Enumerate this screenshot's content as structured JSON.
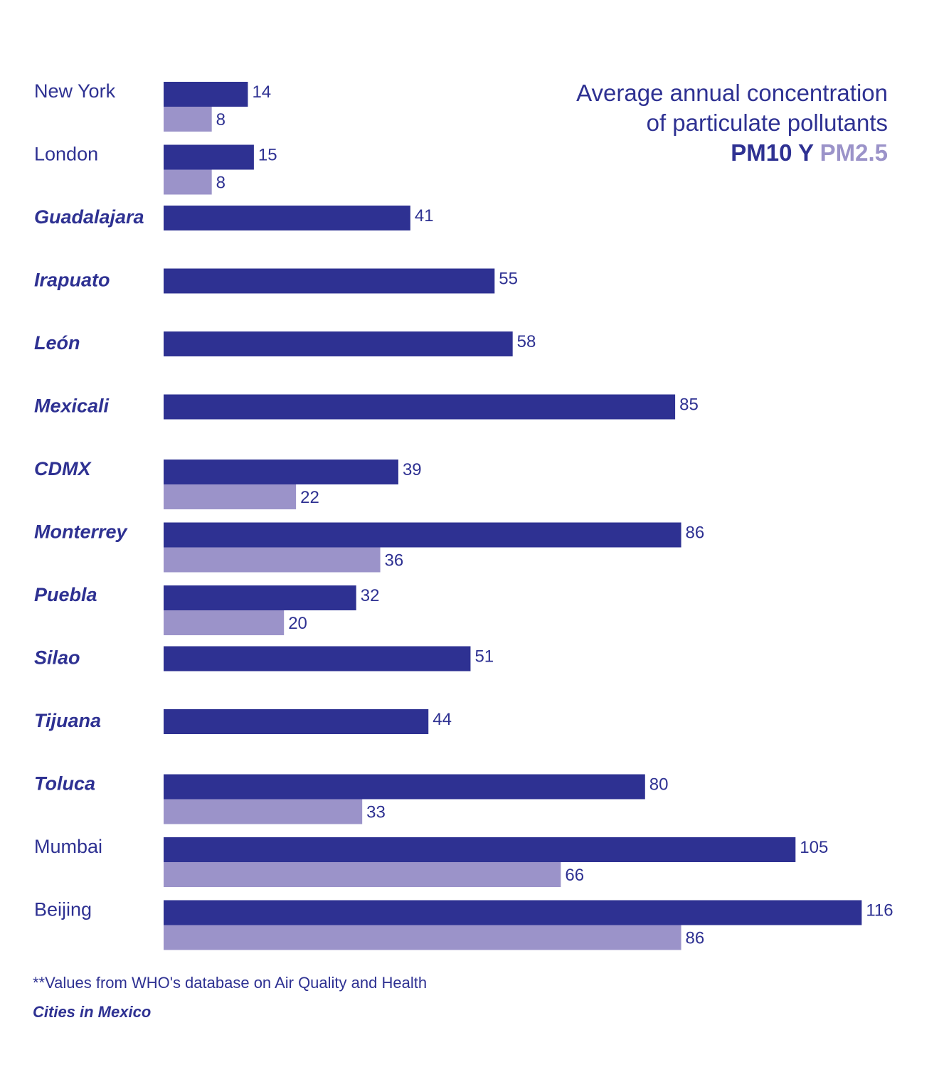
{
  "colors": {
    "pm10": "#2e3192",
    "pm25": "#9b93c9",
    "text": "#2e3192"
  },
  "title": {
    "line1": "Average annual concentration",
    "line2": "of particulate pollutants",
    "legend_pm10": "PM10 Y ",
    "legend_pm25": "PM2.5"
  },
  "footnote": "**Values  from WHO's database on Air Quality and Health",
  "mexico_note": "Cities in Mexico",
  "chart_data": {
    "type": "bar",
    "orientation": "horizontal",
    "title": "Average annual concentration of particulate pollutants PM10 Y PM2.5",
    "categories": [
      "New York",
      "London",
      "Guadalajara",
      "Irapuato",
      "León",
      "Mexicali",
      "CDMX",
      "Monterrey",
      "Puebla",
      "Silao",
      "Tijuana",
      "Toluca",
      "Mumbai",
      "Beijing"
    ],
    "mexican_cities": [
      "Guadalajara",
      "Irapuato",
      "León",
      "Mexicali",
      "CDMX",
      "Monterrey",
      "Puebla",
      "Silao",
      "Tijuana",
      "Toluca"
    ],
    "series": [
      {
        "name": "PM10",
        "values": [
          14,
          15,
          41,
          55,
          58,
          85,
          39,
          86,
          32,
          51,
          44,
          80,
          105,
          116
        ]
      },
      {
        "name": "PM2.5",
        "values": [
          8,
          8,
          null,
          null,
          null,
          null,
          22,
          36,
          20,
          null,
          null,
          33,
          66,
          86
        ]
      }
    ],
    "xlim": [
      0,
      116
    ],
    "grid": false,
    "legend": "top-right"
  }
}
